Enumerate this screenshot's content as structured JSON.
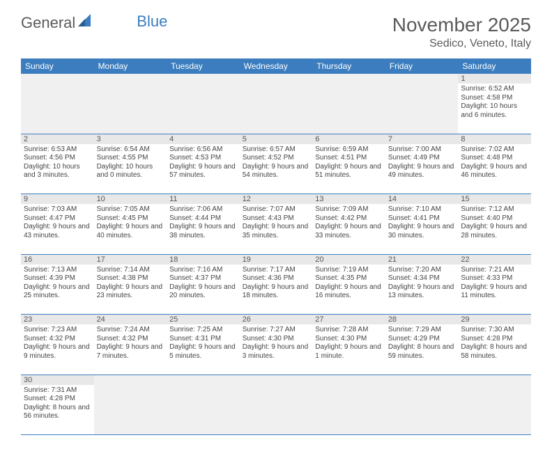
{
  "logo": {
    "text1": "General",
    "text2": "Blue"
  },
  "title": "November 2025",
  "location": "Sedico, Veneto, Italy",
  "colors": {
    "header_bg": "#3b7dbf",
    "header_fg": "#ffffff",
    "daynum_bg": "#e8e8e8",
    "empty_bg": "#f0f0f0",
    "text": "#444444",
    "title_color": "#5a5a5a"
  },
  "dayHeaders": [
    "Sunday",
    "Monday",
    "Tuesday",
    "Wednesday",
    "Thursday",
    "Friday",
    "Saturday"
  ],
  "weeks": [
    [
      null,
      null,
      null,
      null,
      null,
      null,
      {
        "n": "1",
        "sr": "6:52 AM",
        "ss": "4:58 PM",
        "dl": "10 hours and 6 minutes."
      }
    ],
    [
      {
        "n": "2",
        "sr": "6:53 AM",
        "ss": "4:56 PM",
        "dl": "10 hours and 3 minutes."
      },
      {
        "n": "3",
        "sr": "6:54 AM",
        "ss": "4:55 PM",
        "dl": "10 hours and 0 minutes."
      },
      {
        "n": "4",
        "sr": "6:56 AM",
        "ss": "4:53 PM",
        "dl": "9 hours and 57 minutes."
      },
      {
        "n": "5",
        "sr": "6:57 AM",
        "ss": "4:52 PM",
        "dl": "9 hours and 54 minutes."
      },
      {
        "n": "6",
        "sr": "6:59 AM",
        "ss": "4:51 PM",
        "dl": "9 hours and 51 minutes."
      },
      {
        "n": "7",
        "sr": "7:00 AM",
        "ss": "4:49 PM",
        "dl": "9 hours and 49 minutes."
      },
      {
        "n": "8",
        "sr": "7:02 AM",
        "ss": "4:48 PM",
        "dl": "9 hours and 46 minutes."
      }
    ],
    [
      {
        "n": "9",
        "sr": "7:03 AM",
        "ss": "4:47 PM",
        "dl": "9 hours and 43 minutes."
      },
      {
        "n": "10",
        "sr": "7:05 AM",
        "ss": "4:45 PM",
        "dl": "9 hours and 40 minutes."
      },
      {
        "n": "11",
        "sr": "7:06 AM",
        "ss": "4:44 PM",
        "dl": "9 hours and 38 minutes."
      },
      {
        "n": "12",
        "sr": "7:07 AM",
        "ss": "4:43 PM",
        "dl": "9 hours and 35 minutes."
      },
      {
        "n": "13",
        "sr": "7:09 AM",
        "ss": "4:42 PM",
        "dl": "9 hours and 33 minutes."
      },
      {
        "n": "14",
        "sr": "7:10 AM",
        "ss": "4:41 PM",
        "dl": "9 hours and 30 minutes."
      },
      {
        "n": "15",
        "sr": "7:12 AM",
        "ss": "4:40 PM",
        "dl": "9 hours and 28 minutes."
      }
    ],
    [
      {
        "n": "16",
        "sr": "7:13 AM",
        "ss": "4:39 PM",
        "dl": "9 hours and 25 minutes."
      },
      {
        "n": "17",
        "sr": "7:14 AM",
        "ss": "4:38 PM",
        "dl": "9 hours and 23 minutes."
      },
      {
        "n": "18",
        "sr": "7:16 AM",
        "ss": "4:37 PM",
        "dl": "9 hours and 20 minutes."
      },
      {
        "n": "19",
        "sr": "7:17 AM",
        "ss": "4:36 PM",
        "dl": "9 hours and 18 minutes."
      },
      {
        "n": "20",
        "sr": "7:19 AM",
        "ss": "4:35 PM",
        "dl": "9 hours and 16 minutes."
      },
      {
        "n": "21",
        "sr": "7:20 AM",
        "ss": "4:34 PM",
        "dl": "9 hours and 13 minutes."
      },
      {
        "n": "22",
        "sr": "7:21 AM",
        "ss": "4:33 PM",
        "dl": "9 hours and 11 minutes."
      }
    ],
    [
      {
        "n": "23",
        "sr": "7:23 AM",
        "ss": "4:32 PM",
        "dl": "9 hours and 9 minutes."
      },
      {
        "n": "24",
        "sr": "7:24 AM",
        "ss": "4:32 PM",
        "dl": "9 hours and 7 minutes."
      },
      {
        "n": "25",
        "sr": "7:25 AM",
        "ss": "4:31 PM",
        "dl": "9 hours and 5 minutes."
      },
      {
        "n": "26",
        "sr": "7:27 AM",
        "ss": "4:30 PM",
        "dl": "9 hours and 3 minutes."
      },
      {
        "n": "27",
        "sr": "7:28 AM",
        "ss": "4:30 PM",
        "dl": "9 hours and 1 minute."
      },
      {
        "n": "28",
        "sr": "7:29 AM",
        "ss": "4:29 PM",
        "dl": "8 hours and 59 minutes."
      },
      {
        "n": "29",
        "sr": "7:30 AM",
        "ss": "4:28 PM",
        "dl": "8 hours and 58 minutes."
      }
    ],
    [
      {
        "n": "30",
        "sr": "7:31 AM",
        "ss": "4:28 PM",
        "dl": "8 hours and 56 minutes."
      },
      null,
      null,
      null,
      null,
      null,
      null
    ]
  ],
  "labels": {
    "sunrise": "Sunrise:",
    "sunset": "Sunset:",
    "daylight": "Daylight:"
  }
}
